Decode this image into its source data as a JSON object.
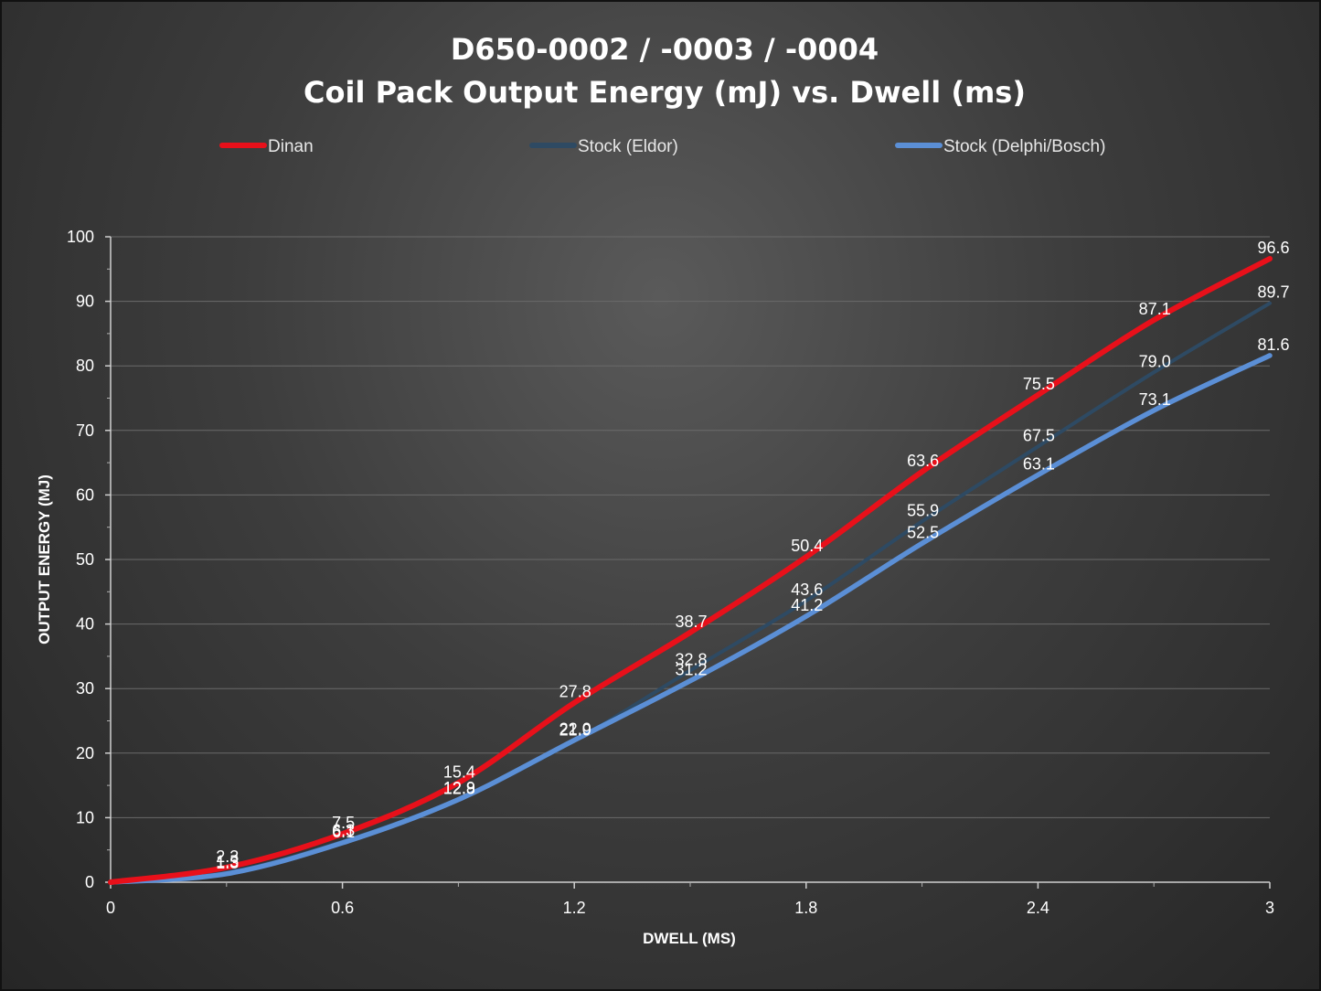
{
  "chart_data": {
    "type": "line",
    "title_line1": "D650-0002  /  -0003  /  -0004",
    "title_line2": "Coil  Pack  Output  Energy  (mJ)  vs.  Dwell  (ms)",
    "xlabel": "DWELL (MS)",
    "ylabel": "OUTPUT ENERGY (MJ)",
    "xlim": [
      0,
      3
    ],
    "ylim": [
      0,
      100
    ],
    "x_ticks": [
      0,
      0.6,
      1.2,
      1.8,
      2.4,
      3
    ],
    "x_tick_labels": [
      "0",
      "0.6",
      "1.2",
      "1.8",
      "2.4",
      "3"
    ],
    "y_ticks": [
      0,
      10,
      20,
      30,
      40,
      50,
      60,
      70,
      80,
      90,
      100
    ],
    "y_tick_labels": [
      "0",
      "10",
      "20",
      "30",
      "40",
      "50",
      "60",
      "70",
      "80",
      "90",
      "100"
    ],
    "grid": true,
    "legend_position": "top",
    "x": [
      0,
      0.3,
      0.6,
      0.9,
      1.2,
      1.5,
      1.8,
      2.1,
      2.4,
      2.7,
      3.0
    ],
    "series": [
      {
        "name": "Dinan",
        "color": "#e8101a",
        "values": [
          0,
          2.3,
          7.5,
          15.4,
          27.8,
          38.7,
          50.4,
          63.6,
          75.5,
          87.1,
          96.6
        ],
        "labels": [
          "",
          "2.3",
          "7.5",
          "15.4",
          "27.8",
          "38.7",
          "50.4",
          "63.6",
          "75.5",
          "87.1",
          "96.6"
        ]
      },
      {
        "name": "Stock (Eldor)",
        "color": "#2e4a63",
        "values": [
          0,
          1.5,
          6.3,
          12.9,
          21.9,
          32.8,
          43.6,
          55.9,
          67.5,
          79.0,
          89.7
        ],
        "labels": [
          "",
          "1.5",
          "6.3",
          "12.9",
          "21.9",
          "32.8",
          "43.6",
          "55.9",
          "67.5",
          "79.0",
          "89.7"
        ]
      },
      {
        "name": "Stock (Delphi/Bosch)",
        "color": "#5b8fd6",
        "values": [
          0,
          1.3,
          6.1,
          12.8,
          22.0,
          31.2,
          41.2,
          52.5,
          63.1,
          73.1,
          81.6
        ],
        "labels": [
          "",
          "1.3",
          "6.1",
          "12.8",
          "22.0",
          "31.2",
          "41.2",
          "52.5",
          "63.1",
          "73.1",
          "81.6"
        ]
      }
    ]
  }
}
